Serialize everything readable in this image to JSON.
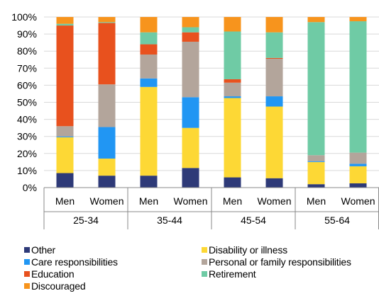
{
  "chart_data": {
    "type": "bar",
    "stacked": true,
    "y_ticks": [
      "0%",
      "10%",
      "20%",
      "30%",
      "40%",
      "50%",
      "60%",
      "70%",
      "80%",
      "90%",
      "100%"
    ],
    "ylim": [
      0,
      100
    ],
    "groups": [
      {
        "label": "25-34",
        "categories": [
          "Men",
          "Women"
        ]
      },
      {
        "label": "35-44",
        "categories": [
          "Men",
          "Women"
        ]
      },
      {
        "label": "45-54",
        "categories": [
          "Men",
          "Women"
        ]
      },
      {
        "label": "55-64",
        "categories": [
          "Men",
          "Women"
        ]
      }
    ],
    "series": [
      {
        "name": "Other",
        "color": "#2e3a78",
        "values": [
          8.5,
          7.0,
          7.0,
          11.5,
          6.0,
          5.5,
          2.0,
          2.5
        ]
      },
      {
        "name": "Disability or illness",
        "color": "#fdd835",
        "values": [
          21.0,
          10.0,
          52.0,
          23.5,
          46.5,
          42.0,
          13.0,
          10.0
        ]
      },
      {
        "name": "Care responsibilities",
        "color": "#2196f3",
        "values": [
          0.5,
          18.5,
          5.0,
          18.0,
          1.0,
          6.0,
          0.5,
          1.5
        ]
      },
      {
        "name": "Personal or family responsibilities",
        "color": "#b3a59b",
        "values": [
          6.0,
          25.0,
          14.0,
          32.5,
          8.0,
          22.0,
          3.5,
          6.5
        ]
      },
      {
        "name": "Education",
        "color": "#e8511e",
        "values": [
          59.0,
          36.0,
          6.0,
          5.5,
          2.0,
          0.5,
          0.0,
          0.0
        ]
      },
      {
        "name": "Retirement",
        "color": "#6fcba5",
        "values": [
          1.0,
          0.5,
          7.0,
          3.0,
          28.0,
          15.0,
          78.0,
          77.0
        ]
      },
      {
        "name": "Discouraged",
        "color": "#f7941d",
        "values": [
          4.0,
          3.0,
          9.0,
          6.0,
          8.5,
          9.0,
          3.0,
          2.5
        ]
      }
    ]
  }
}
